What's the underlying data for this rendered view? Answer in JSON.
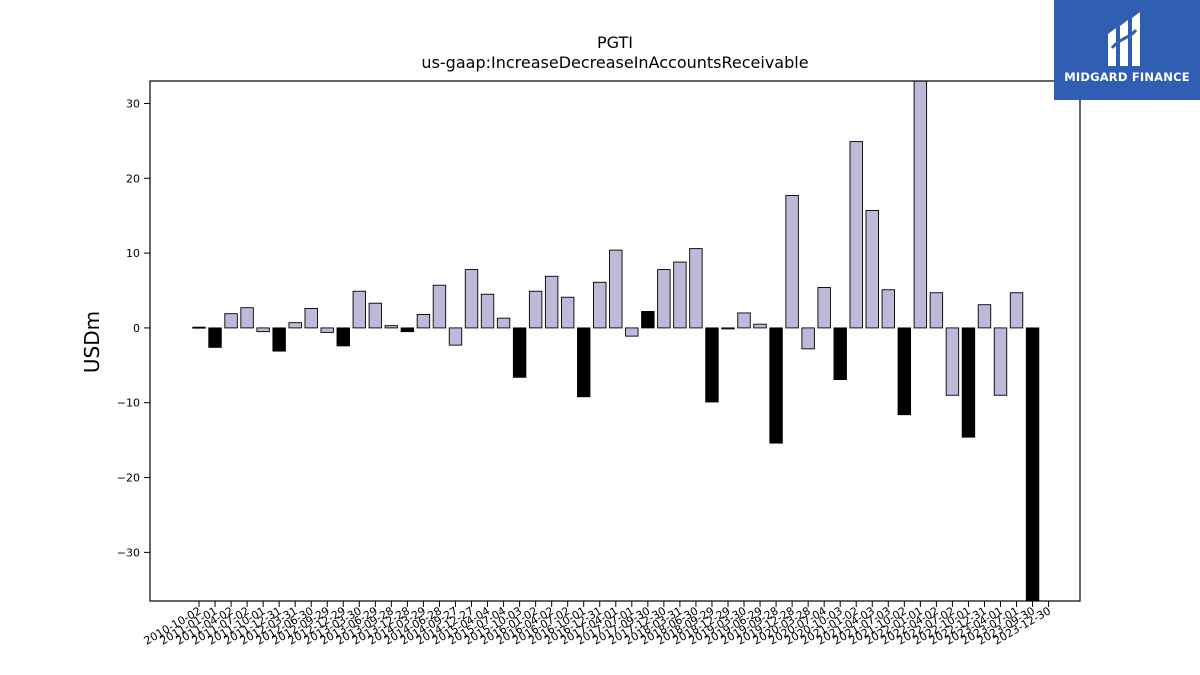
{
  "brand": {
    "name": "MIDGARD FINANCE",
    "bg_color": "#2f5eb3"
  },
  "chart_data": {
    "type": "bar",
    "title": "PGTI",
    "subtitle": "us-gaap:IncreaseDecreaseInAccountsReceivable",
    "xlabel": "",
    "ylabel": "USDm",
    "ylim": [
      -36.5,
      33.0
    ],
    "yticks": [
      30,
      20,
      10,
      0,
      -10,
      -20,
      -30
    ],
    "ytick_labels": [
      "30",
      "20",
      "10",
      "0",
      "−10",
      "−20",
      "−30"
    ],
    "grid": false,
    "colors": {
      "quarter": "#bcbad8",
      "annual": "#000000",
      "edge": "#000000"
    },
    "categories": [
      "2010-10-02",
      "2011-01-01",
      "2011-04-02",
      "2011-07-02",
      "2011-10-01",
      "2011-12-31",
      "2012-03-31",
      "2012-06-30",
      "2012-09-29",
      "2012-12-29",
      "2013-03-30",
      "2013-06-29",
      "2013-09-28",
      "2013-12-28",
      "2014-03-29",
      "2014-06-28",
      "2014-09-27",
      "2014-12-27",
      "2015-04-04",
      "2015-07-04",
      "2015-10-03",
      "2016-01-02",
      "2016-04-02",
      "2016-07-02",
      "2016-10-01",
      "2016-12-31",
      "2017-04-01",
      "2017-07-01",
      "2017-09-30",
      "2017-12-30",
      "2018-03-31",
      "2018-06-30",
      "2018-09-29",
      "2018-12-29",
      "2019-03-30",
      "2019-06-29",
      "2019-09-28",
      "2019-12-28",
      "2020-03-28",
      "2020-07-04",
      "2020-10-03",
      "2021-01-02",
      "2021-04-03",
      "2021-07-03",
      "2021-10-02",
      "2022-01-01",
      "2022-04-02",
      "2022-07-02",
      "2022-10-01",
      "2022-12-31",
      "2023-04-01",
      "2023-07-01",
      "2023-09-30",
      "2023-12-30"
    ],
    "values": [
      0.1,
      -2.6,
      1.9,
      2.7,
      -0.5,
      -3.1,
      0.7,
      2.6,
      -0.6,
      -2.4,
      4.9,
      3.3,
      0.3,
      -0.5,
      1.8,
      5.7,
      -2.3,
      7.8,
      4.5,
      1.3,
      -6.6,
      4.9,
      6.9,
      4.1,
      -9.2,
      6.1,
      10.4,
      -1.1,
      2.2,
      7.8,
      8.8,
      10.6,
      -9.9,
      -0.1,
      2.0,
      0.5,
      -15.4,
      17.7,
      -2.8,
      5.4,
      -6.9,
      24.9,
      15.7,
      5.1,
      -11.6,
      33.0,
      4.7,
      -9.0,
      -14.6,
      3.1,
      -9.0,
      4.7,
      -36.5,
      null
    ],
    "annual": [
      true,
      true,
      false,
      false,
      false,
      true,
      false,
      false,
      false,
      true,
      false,
      false,
      false,
      true,
      false,
      false,
      false,
      false,
      false,
      false,
      true,
      false,
      false,
      false,
      true,
      false,
      false,
      false,
      true,
      false,
      false,
      false,
      true,
      false,
      false,
      false,
      true,
      false,
      false,
      false,
      true,
      false,
      false,
      false,
      true,
      false,
      false,
      false,
      true,
      false,
      false,
      false,
      true,
      false
    ]
  }
}
